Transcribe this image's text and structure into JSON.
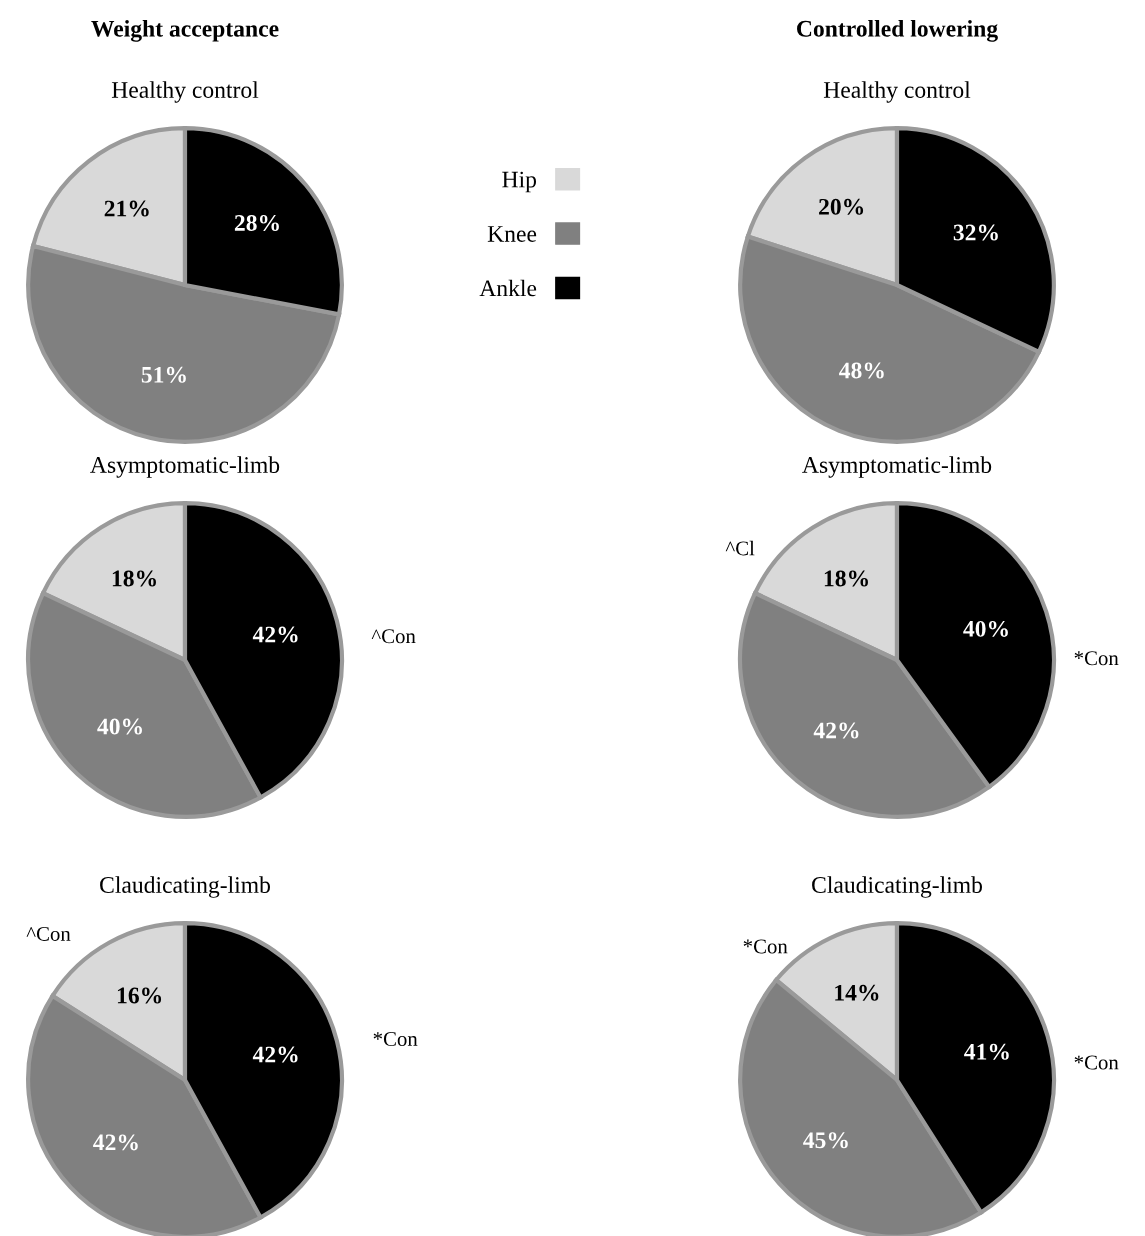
{
  "chart_data": [
    {
      "type": "pie",
      "title": "Weight acceptance",
      "subtitle": "Healthy control",
      "categories": [
        "Hip",
        "Knee",
        "Ankle"
      ],
      "values": [
        21,
        51,
        28
      ],
      "value_labels": [
        "21%",
        "51%",
        "28%"
      ],
      "colors": [
        "#d9d9d9",
        "#808080",
        "#000000"
      ],
      "legend": "right"
    },
    {
      "type": "pie",
      "title": "Controlled lowering",
      "subtitle": "Healthy control",
      "categories": [
        null,
        null,
        null
      ],
      "values": [
        20,
        48,
        32
      ],
      "value_labels": [
        "20%",
        "48%",
        "32%"
      ],
      "colors": [
        "#d9d9d9",
        "#808080",
        "#000000"
      ]
    },
    {
      "type": "pie",
      "title": "Asymptomatic-limb",
      "categories": [
        null,
        null,
        null
      ],
      "values": [
        18,
        40,
        42
      ],
      "value_labels": [
        "18%",
        "40%",
        "42%"
      ],
      "colors": [
        "#d9d9d9",
        "#808080",
        "#000000"
      ],
      "annotations": [
        "^Con"
      ]
    },
    {
      "type": "pie",
      "title": "Asymptomatic-limb",
      "categories": [
        null,
        null,
        null
      ],
      "values": [
        18,
        42,
        40
      ],
      "value_labels": [
        "18%",
        "42%",
        "40%"
      ],
      "colors": [
        "#d9d9d9",
        "#808080",
        "#000000"
      ],
      "annotations": [
        "^Cl",
        "*Con"
      ]
    },
    {
      "type": "pie",
      "title": "Claudicating-limb",
      "categories": [
        null,
        null,
        null
      ],
      "values": [
        16,
        42,
        42
      ],
      "value_labels": [
        "16%",
        "42%",
        "42%"
      ],
      "colors": [
        "#d9d9d9",
        "#808080",
        "#000000"
      ],
      "annotations": [
        "^Con",
        "*Con"
      ]
    },
    {
      "type": "pie",
      "title": "Claudicating-limb",
      "categories": [
        null,
        null,
        null
      ],
      "values": [
        14,
        45,
        41
      ],
      "value_labels": [
        "14%",
        "45%",
        "41%"
      ],
      "colors": [
        "#d9d9d9",
        "#808080",
        "#000000"
      ],
      "annotations": [
        "*Con",
        "*Con"
      ]
    }
  ]
}
